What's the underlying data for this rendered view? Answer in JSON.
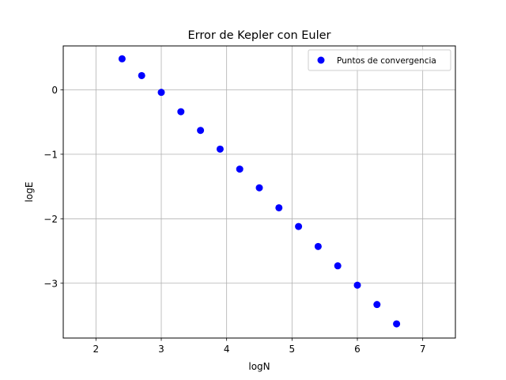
{
  "chart_data": {
    "type": "scatter",
    "title": "Error de Kepler con Euler",
    "xlabel": "logN",
    "ylabel": "logE",
    "xlim": [
      1.5,
      7.5
    ],
    "ylim": [
      -3.85,
      0.68
    ],
    "xticks": [
      2,
      3,
      4,
      5,
      6,
      7
    ],
    "yticks": [
      0,
      -1,
      -2,
      -3
    ],
    "xtick_labels": [
      "2",
      "3",
      "4",
      "5",
      "6",
      "7"
    ],
    "ytick_labels": [
      "0",
      "−1",
      "−2",
      "−3"
    ],
    "grid": true,
    "legend_position": "top-right",
    "series": [
      {
        "name": "Puntos de convergencia",
        "color": "#0000ff",
        "marker": "circle",
        "x": [
          2.4,
          2.7,
          3.0,
          3.3,
          3.6,
          3.9,
          4.2,
          4.5,
          4.8,
          5.1,
          5.4,
          5.7,
          6.0,
          6.3,
          6.6
        ],
        "y": [
          0.48,
          0.22,
          -0.04,
          -0.34,
          -0.63,
          -0.92,
          -1.23,
          -1.52,
          -1.83,
          -2.12,
          -2.43,
          -2.73,
          -3.03,
          -3.33,
          -3.63
        ]
      }
    ]
  }
}
